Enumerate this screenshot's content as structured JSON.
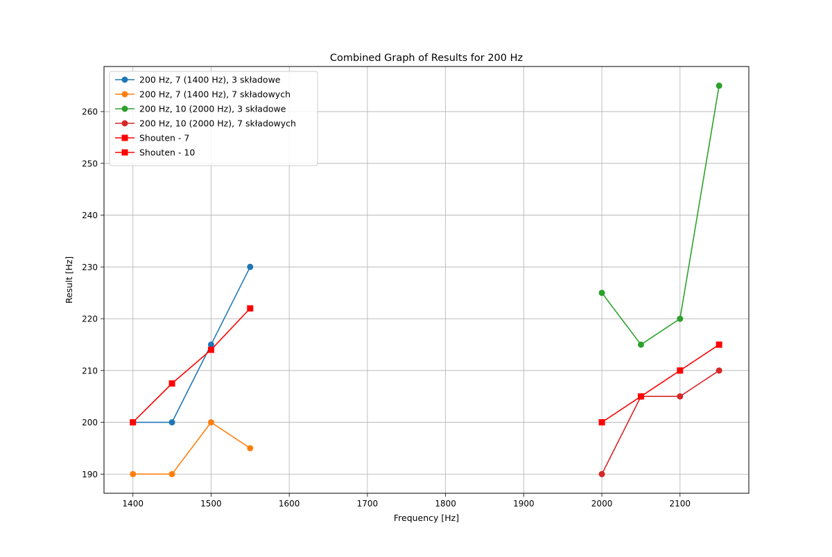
{
  "chart_data": {
    "type": "line",
    "title": "Combined Graph of Results for 200 Hz",
    "xlabel": "Frequency [Hz]",
    "ylabel": "Result [Hz]",
    "xlim": [
      1363,
      2188
    ],
    "ylim": [
      186.3,
      268.7
    ],
    "xticks": [
      1400,
      1500,
      1600,
      1700,
      1800,
      1900,
      2000,
      2100
    ],
    "yticks": [
      190,
      200,
      210,
      220,
      230,
      240,
      250,
      260
    ],
    "grid": true,
    "legend_position": "top-left",
    "series": [
      {
        "name": "200 Hz, 7 (1400 Hz), 3 składowe",
        "color": "#1f77b4",
        "marker": "circle",
        "x": [
          1400,
          1450,
          1500,
          1550
        ],
        "y": [
          200,
          200,
          215,
          230
        ]
      },
      {
        "name": "200 Hz, 7 (1400 Hz), 7 składowych",
        "color": "#ff7f0e",
        "marker": "circle",
        "x": [
          1400,
          1450,
          1500,
          1550
        ],
        "y": [
          190,
          190,
          200,
          195
        ]
      },
      {
        "name": "200 Hz, 10 (2000 Hz), 3 składowe",
        "color": "#2ca02c",
        "marker": "circle",
        "x": [
          2000,
          2050,
          2100,
          2150
        ],
        "y": [
          225,
          215,
          220,
          265
        ]
      },
      {
        "name": "200 Hz, 10 (2000 Hz), 7 składowych",
        "color": "#d62728",
        "marker": "circle",
        "x": [
          2000,
          2050,
          2100,
          2150
        ],
        "y": [
          190,
          205,
          205,
          210
        ]
      },
      {
        "name": "Shouten - 7",
        "color": "#ff0000",
        "marker": "square",
        "x": [
          1400,
          1450,
          1500,
          1550
        ],
        "y": [
          200,
          207.5,
          214,
          222
        ]
      },
      {
        "name": "Shouten - 10",
        "color": "#ff0000",
        "marker": "square",
        "x": [
          2000,
          2050,
          2100,
          2150
        ],
        "y": [
          200,
          205,
          210,
          215
        ]
      }
    ]
  }
}
